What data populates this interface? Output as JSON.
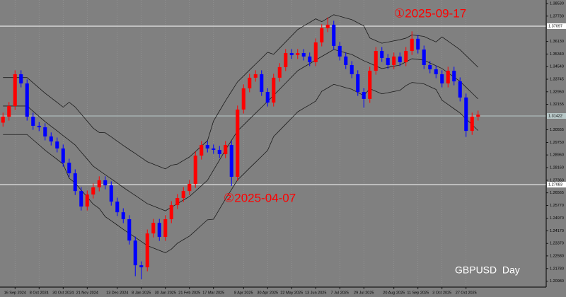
{
  "chart_data": {
    "type": "candlestick",
    "title": "GBPUSD  Day",
    "annotations": [
      "①2025-09-17",
      "②2025-04-07"
    ],
    "categories": [
      null,
      null,
      "16 Sep 2024",
      null,
      null,
      null,
      "8 Oct 2024",
      null,
      null,
      null,
      "30 Oct 2024",
      null,
      null,
      null,
      "21 Nov 2024",
      null,
      null,
      null,
      null,
      "13 Dec 2024",
      null,
      null,
      null,
      "8 Jan 2025",
      null,
      null,
      null,
      "30 Jan 2025",
      null,
      null,
      null,
      "21 Feb 2025",
      null,
      null,
      null,
      "17 Mar 2025",
      null,
      null,
      null,
      null,
      "8 Apr 2025",
      null,
      null,
      null,
      "30 Apr 2025",
      null,
      null,
      null,
      "22 May 2025",
      null,
      null,
      null,
      "13 Jun 2025",
      null,
      null,
      null,
      "7 Jul 2025",
      null,
      null,
      null,
      "29 Jul 2025",
      null,
      null,
      null,
      null,
      "20 Aug 2025",
      null,
      null,
      null,
      "11 Sep 2025",
      null,
      null,
      null,
      "3 Oct 2025",
      null,
      null,
      null,
      "27 Oct 2025",
      null,
      null
    ],
    "open": [
      1.31,
      1.3138,
      1.3205,
      1.3406,
      1.3348,
      1.3138,
      1.308,
      1.3071,
      1.3013,
      1.2981,
      1.2937,
      1.2847,
      1.278,
      1.2668,
      1.257,
      1.2646,
      1.2691,
      1.2736,
      1.2704,
      1.2601,
      1.2534,
      1.249,
      1.2355,
      1.2199,
      1.2186,
      1.24,
      1.2467,
      1.2378,
      1.249,
      1.2579,
      1.2624,
      1.2668,
      1.2713,
      1.2892,
      1.2959,
      1.2937,
      1.2928,
      1.2901,
      1.2959,
      1.2758,
      1.3183,
      1.3317,
      1.3384,
      1.3406,
      1.3294,
      1.3227,
      1.3384,
      1.3451,
      1.354,
      1.3527,
      1.354,
      1.3518,
      1.3482,
      1.3607,
      1.3697,
      1.3719,
      1.3585,
      1.3518,
      1.3464,
      1.3406,
      1.3294,
      1.325,
      1.3428,
      1.3553,
      1.3509,
      1.3464,
      1.3518,
      1.3482,
      1.3553,
      1.363,
      1.3562,
      1.3464,
      1.3437,
      1.3406,
      1.3348,
      1.3428,
      1.3361,
      1.3259,
      1.3048,
      1.3138
    ],
    "high": [
      1.3163,
      1.323,
      1.3431,
      1.3431,
      1.3373,
      1.3163,
      1.3105,
      1.3096,
      1.3038,
      1.3006,
      1.2962,
      1.2872,
      1.2805,
      1.2693,
      1.2671,
      1.2716,
      1.2761,
      1.2761,
      1.2729,
      1.2626,
      1.2559,
      1.2515,
      1.238,
      1.2224,
      1.2425,
      1.2492,
      1.2492,
      1.2515,
      1.2604,
      1.2649,
      1.2693,
      1.2738,
      1.2917,
      1.2984,
      1.2984,
      1.2962,
      1.2953,
      1.2984,
      1.2984,
      1.3208,
      1.3342,
      1.3409,
      1.3431,
      1.3431,
      1.3319,
      1.3409,
      1.3476,
      1.3565,
      1.3565,
      1.3565,
      1.3565,
      1.3543,
      1.3632,
      1.3722,
      1.3765,
      1.3744,
      1.361,
      1.3543,
      1.3489,
      1.3431,
      1.3319,
      1.3453,
      1.3578,
      1.3578,
      1.3534,
      1.3543,
      1.3543,
      1.3578,
      1.3677,
      1.3655,
      1.3587,
      1.3489,
      1.3462,
      1.3431,
      1.3453,
      1.3453,
      1.3386,
      1.3284,
      1.3163,
      1.3176
    ],
    "low": [
      1.3075,
      1.3113,
      1.318,
      1.3323,
      1.3113,
      1.3055,
      1.3046,
      1.2988,
      1.2956,
      1.2912,
      1.2822,
      1.2755,
      1.2643,
      1.2545,
      1.2545,
      1.2621,
      1.2666,
      1.2679,
      1.2576,
      1.2509,
      1.2465,
      1.233,
      1.213,
      1.211,
      1.2161,
      1.2375,
      1.2353,
      1.2353,
      1.2465,
      1.2554,
      1.2599,
      1.2643,
      1.2688,
      1.2867,
      1.2912,
      1.2903,
      1.2876,
      1.2876,
      1.27,
      1.2733,
      1.3158,
      1.3292,
      1.3359,
      1.3269,
      1.3202,
      1.3202,
      1.3359,
      1.3426,
      1.3502,
      1.3502,
      1.3493,
      1.3457,
      1.3457,
      1.3582,
      1.3672,
      1.356,
      1.3493,
      1.3439,
      1.3381,
      1.3269,
      1.3195,
      1.3225,
      1.3403,
      1.3484,
      1.3439,
      1.3439,
      1.3457,
      1.3457,
      1.3528,
      1.3537,
      1.3439,
      1.3412,
      1.3381,
      1.3323,
      1.3323,
      1.3336,
      1.3234,
      1.301,
      1.3023,
      1.3113
    ],
    "close": [
      1.3138,
      1.3205,
      1.3406,
      1.3348,
      1.3138,
      1.308,
      1.3071,
      1.3013,
      1.2981,
      1.2937,
      1.2847,
      1.278,
      1.2668,
      1.257,
      1.2646,
      1.2691,
      1.2736,
      1.2704,
      1.2601,
      1.2534,
      1.249,
      1.2355,
      1.2199,
      1.2186,
      1.24,
      1.2467,
      1.2378,
      1.249,
      1.2579,
      1.2624,
      1.2668,
      1.2713,
      1.2892,
      1.2959,
      1.2937,
      1.2928,
      1.2901,
      1.2959,
      1.2758,
      1.3183,
      1.3317,
      1.3384,
      1.3406,
      1.3294,
      1.3227,
      1.3384,
      1.3451,
      1.354,
      1.3527,
      1.354,
      1.3518,
      1.3482,
      1.3607,
      1.3697,
      1.3719,
      1.3585,
      1.3518,
      1.3464,
      1.3406,
      1.3294,
      1.325,
      1.3428,
      1.3553,
      1.3509,
      1.3464,
      1.3518,
      1.3482,
      1.3553,
      1.363,
      1.3562,
      1.3464,
      1.3437,
      1.3406,
      1.3348,
      1.3428,
      1.3361,
      1.3259,
      1.3048,
      1.3138,
      1.3151
    ],
    "up_color": "#ff0000",
    "down_color": "#0000ff",
    "bands": [
      {
        "color": "#1a1a1a",
        "values": [
          1.3385,
          1.3385,
          1.3385,
          1.3385,
          1.3385,
          1.3352,
          1.3319,
          1.3286,
          1.3257,
          1.3228,
          1.3198,
          1.3229,
          1.3199,
          1.3154,
          1.311,
          1.3065,
          1.3038,
          1.3036,
          1.301,
          1.2983,
          1.2956,
          1.293,
          1.2905,
          1.2879,
          1.2853,
          1.2838,
          1.2823,
          1.2808,
          1.2831,
          1.2838,
          1.2861,
          1.2883,
          1.2917,
          1.2952,
          1.2986,
          1.311,
          1.3174,
          1.3238,
          1.3298,
          1.3358,
          1.3395,
          1.3433,
          1.347,
          1.3507,
          1.3545,
          1.3532,
          1.3571,
          1.361,
          1.3649,
          1.3688,
          1.3711,
          1.3733,
          1.3756,
          1.3738,
          1.376,
          1.3782,
          1.3772,
          1.3761,
          1.3751,
          1.3731,
          1.3711,
          1.3635,
          1.3618,
          1.3602,
          1.3609,
          1.3617,
          1.3624,
          1.3634,
          1.3654,
          1.365,
          1.3645,
          1.3627,
          1.361,
          1.3642,
          1.3615,
          1.3588,
          1.3561,
          1.3524,
          1.3487,
          1.345
        ]
      },
      {
        "color": "#1a1a1a",
        "values": [
          1.3205,
          1.3205,
          1.3205,
          1.3205,
          1.3205,
          1.3172,
          1.3139,
          1.3106,
          1.3077,
          1.3048,
          1.3018,
          1.2989,
          1.2959,
          1.2914,
          1.287,
          1.2825,
          1.2798,
          1.2771,
          1.2745,
          1.2718,
          1.2691,
          1.2665,
          1.264,
          1.2614,
          1.2588,
          1.2573,
          1.2558,
          1.2543,
          1.2566,
          1.2588,
          1.2611,
          1.2633,
          1.2667,
          1.2702,
          1.2736,
          1.28,
          1.2864,
          1.2928,
          1.2988,
          1.3048,
          1.3085,
          1.3123,
          1.316,
          1.3197,
          1.3235,
          1.3272,
          1.3311,
          1.335,
          1.3389,
          1.3428,
          1.3451,
          1.3473,
          1.3496,
          1.3518,
          1.354,
          1.3562,
          1.3552,
          1.3541,
          1.3531,
          1.3511,
          1.3491,
          1.3475,
          1.3458,
          1.3442,
          1.3449,
          1.3457,
          1.3464,
          1.3484,
          1.3504,
          1.35,
          1.3495,
          1.3477,
          1.346,
          1.3442,
          1.3415,
          1.3388,
          1.3361,
          1.3324,
          1.3287,
          1.325
        ]
      },
      {
        "color": "#1a1a1a",
        "values": [
          1.3025,
          1.3025,
          1.3025,
          1.3025,
          1.3025,
          1.2992,
          1.2959,
          1.2926,
          1.2897,
          1.2868,
          1.2838,
          1.2749,
          1.2719,
          1.2674,
          1.263,
          1.2585,
          1.2558,
          1.2506,
          1.248,
          1.2453,
          1.2426,
          1.24,
          1.2375,
          1.2349,
          1.2323,
          1.2308,
          1.2293,
          1.2278,
          1.2301,
          1.2338,
          1.2361,
          1.2383,
          1.2417,
          1.2452,
          1.2486,
          1.249,
          1.2554,
          1.2618,
          1.2678,
          1.2738,
          1.2775,
          1.2813,
          1.285,
          1.2887,
          1.2925,
          1.3012,
          1.3051,
          1.309,
          1.3129,
          1.3168,
          1.3191,
          1.3213,
          1.3236,
          1.3298,
          1.332,
          1.3342,
          1.3332,
          1.3321,
          1.3311,
          1.3291,
          1.3271,
          1.3315,
          1.3298,
          1.3282,
          1.3289,
          1.3297,
          1.3304,
          1.3334,
          1.3354,
          1.335,
          1.3345,
          1.3327,
          1.331,
          1.3242,
          1.3215,
          1.3188,
          1.3161,
          1.3124,
          1.3087,
          1.305
        ]
      }
    ],
    "hlines": [
      {
        "value": 1.37097,
        "color": "#ffffff"
      },
      {
        "value": 1.31422,
        "color": "#b8c8c8"
      },
      {
        "value": 1.27083,
        "color": "#ffffff"
      }
    ],
    "ylim": [
      1.2061,
      1.3875
    ],
    "yticks": [
      {
        "value": 1.3853,
        "label": "1.38530"
      },
      {
        "value": 1.3773,
        "label": "1.37730"
      },
      {
        "value": 1.3613,
        "label": "1.36130"
      },
      {
        "value": 1.3534,
        "label": "1.35340"
      },
      {
        "value": 1.3454,
        "label": "1.34540"
      },
      1.33745,
      {
        "value": 1.3295,
        "label": "1.32950"
      },
      1.32155,
      {
        "value": 1.30555,
        "label": "1.30555"
      },
      {
        "value": 1.2975,
        "label": "1.29750"
      },
      {
        "value": 1.2896,
        "label": "1.28960"
      },
      {
        "value": 1.2816,
        "label": "1.28160"
      },
      {
        "value": 1.2736,
        "label": "1.27360"
      },
      1.26565,
      {
        "value": 1.2577,
        "label": "1.25770"
      },
      {
        "value": 1.2497,
        "label": "1.24970"
      },
      {
        "value": 1.2417,
        "label": "1.24170"
      },
      {
        "value": 1.2337,
        "label": "1.23370"
      },
      {
        "value": 1.2258,
        "label": "1.22580"
      },
      {
        "value": 1.2178,
        "label": "1.21780"
      },
      {
        "value": 1.2098,
        "label": "1.20980"
      }
    ],
    "grid": true
  }
}
